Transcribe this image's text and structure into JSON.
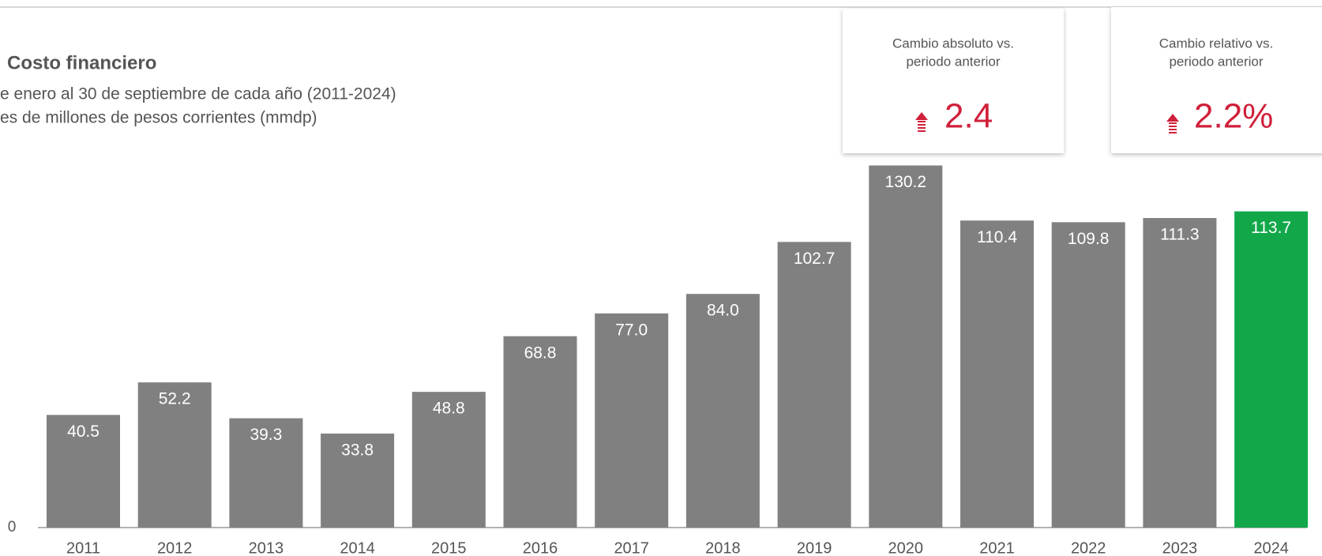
{
  "chart_data": {
    "type": "bar",
    "title": "Costo financiero",
    "subtitle": [
      "e enero al 30 de septiembre de cada año (2011-2024)",
      "es de millones de pesos corrientes (mmdp)"
    ],
    "categories": [
      "2011",
      "2012",
      "2013",
      "2014",
      "2015",
      "2016",
      "2017",
      "2018",
      "2019",
      "2020",
      "2021",
      "2022",
      "2023",
      "2024"
    ],
    "values": [
      40.5,
      52.2,
      39.3,
      33.8,
      48.8,
      68.8,
      77.0,
      84.0,
      102.7,
      130.2,
      110.4,
      109.8,
      111.3,
      113.7
    ],
    "value_labels": [
      "40.5",
      "52.2",
      "39.3",
      "33.8",
      "48.8",
      "68.8",
      "77.0",
      "84.0",
      "102.7",
      "130.2",
      "110.4",
      "109.8",
      "111.3",
      "113.7"
    ],
    "colors": [
      "#808080",
      "#808080",
      "#808080",
      "#808080",
      "#808080",
      "#808080",
      "#808080",
      "#808080",
      "#808080",
      "#808080",
      "#808080",
      "#808080",
      "#808080",
      "#12a84a"
    ],
    "ylim": [
      0,
      140
    ],
    "yticks": [
      0
    ],
    "grid": false
  },
  "kpis": [
    {
      "label": [
        "Cambio absoluto vs.",
        "periodo anterior"
      ],
      "value": "2.4"
    },
    {
      "label": [
        "Cambio relativo vs.",
        "periodo anterior"
      ],
      "value": "2.2%"
    }
  ]
}
